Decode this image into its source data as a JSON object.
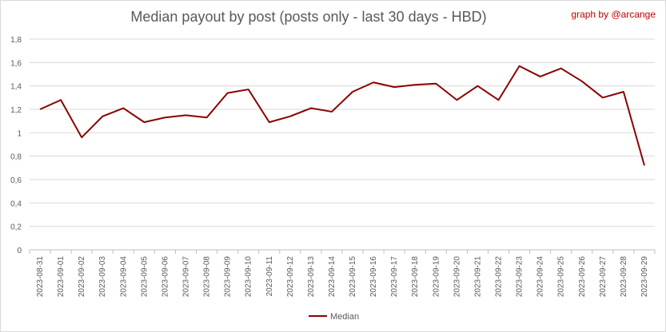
{
  "chart_data": {
    "type": "line",
    "title": "Median payout by post (posts only - last 30 days - HBD)",
    "credit": "graph by @arcange",
    "x": [
      "2023-08-31",
      "2023-09-01",
      "2023-09-02",
      "2023-09-03",
      "2023-09-04",
      "2023-09-05",
      "2023-09-06",
      "2023-09-07",
      "2023-09-08",
      "2023-09-09",
      "2023-09-10",
      "2023-09-11",
      "2023-09-12",
      "2023-09-13",
      "2023-09-14",
      "2023-09-15",
      "2023-09-16",
      "2023-09-17",
      "2023-09-18",
      "2023-09-19",
      "2023-09-20",
      "2023-09-21",
      "2023-09-22",
      "2023-09-23",
      "2023-09-24",
      "2023-09-25",
      "2023-09-26",
      "2023-09-27",
      "2023-09-28",
      "2023-09-29"
    ],
    "series": [
      {
        "name": "Median",
        "color": "#8b0000",
        "values": [
          1.2,
          1.28,
          0.96,
          1.14,
          1.21,
          1.09,
          1.13,
          1.15,
          1.13,
          1.34,
          1.37,
          1.09,
          1.14,
          1.21,
          1.18,
          1.35,
          1.43,
          1.39,
          1.41,
          1.42,
          1.28,
          1.4,
          1.28,
          1.57,
          1.48,
          1.55,
          1.44,
          1.3,
          1.35,
          0.72
        ]
      }
    ],
    "ylim": [
      0,
      1.8
    ],
    "yticks": [
      "0",
      "0,2",
      "0,4",
      "0,6",
      "0,8",
      "1",
      "1,2",
      "1,4",
      "1,6",
      "1,8"
    ],
    "grid": true,
    "legend": "bottom"
  }
}
